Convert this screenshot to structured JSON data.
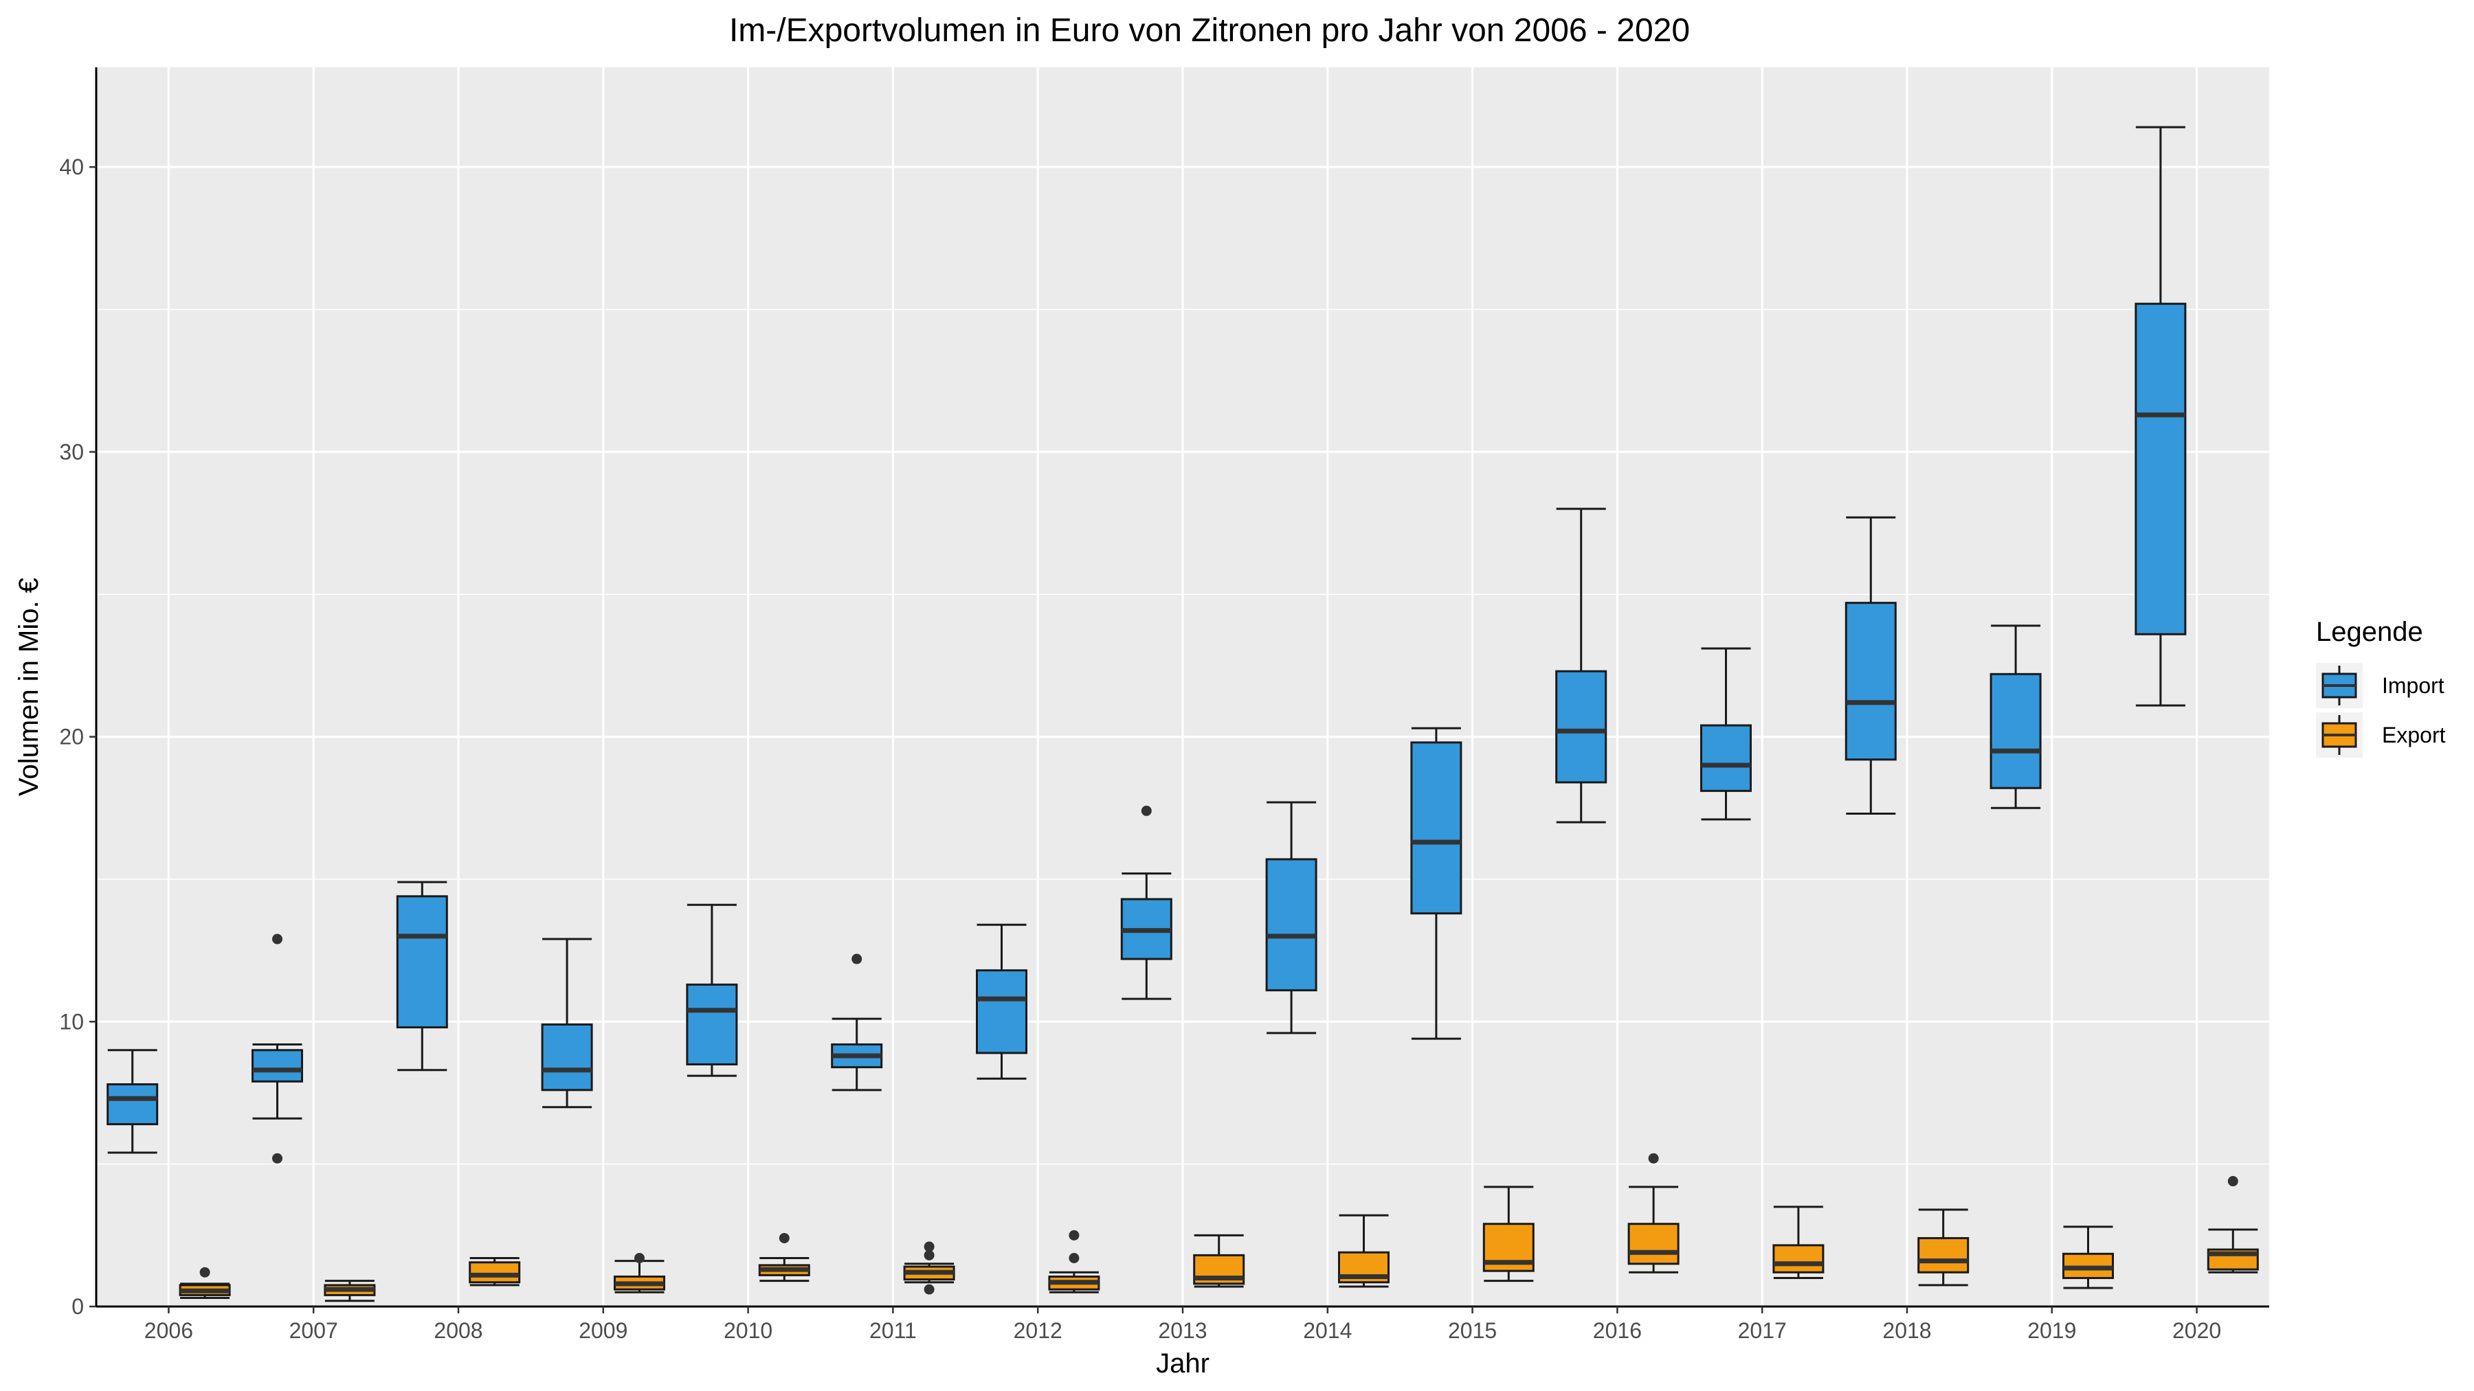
{
  "chart_data": {
    "type": "boxplot",
    "title": "Im-/Exportvolumen in Euro von Zitronen pro Jahr von 2006 - 2020",
    "xlabel": "Jahr",
    "ylabel": "Volumen in Mio. €",
    "ylim": [
      0,
      43.5
    ],
    "y_ticks": [
      "0",
      "10",
      "20",
      "30",
      "40"
    ],
    "categories": [
      "2006",
      "2007",
      "2008",
      "2009",
      "2010",
      "2011",
      "2012",
      "2013",
      "2014",
      "2015",
      "2016",
      "2017",
      "2018",
      "2019",
      "2020"
    ],
    "legend": {
      "title": "Legende",
      "position": "right"
    },
    "grid": true,
    "series": [
      {
        "name": "Import",
        "color": "#3498db",
        "boxes": [
          {
            "min": 5.4,
            "q1": 6.4,
            "median": 7.3,
            "q3": 7.8,
            "max": 9.0,
            "outliers": []
          },
          {
            "min": 6.6,
            "q1": 7.9,
            "median": 8.3,
            "q3": 9.0,
            "max": 9.2,
            "outliers": [
              12.9,
              5.2
            ]
          },
          {
            "min": 8.3,
            "q1": 9.8,
            "median": 13.0,
            "q3": 14.4,
            "max": 14.9,
            "outliers": []
          },
          {
            "min": 7.0,
            "q1": 7.6,
            "median": 8.3,
            "q3": 9.9,
            "max": 12.9,
            "outliers": []
          },
          {
            "min": 8.1,
            "q1": 8.5,
            "median": 10.4,
            "q3": 11.3,
            "max": 14.1,
            "outliers": []
          },
          {
            "min": 7.6,
            "q1": 8.4,
            "median": 8.8,
            "q3": 9.2,
            "max": 10.1,
            "outliers": [
              12.2
            ]
          },
          {
            "min": 8.0,
            "q1": 8.9,
            "median": 10.8,
            "q3": 11.8,
            "max": 13.4,
            "outliers": []
          },
          {
            "min": 10.8,
            "q1": 12.2,
            "median": 13.2,
            "q3": 14.3,
            "max": 15.2,
            "outliers": [
              17.4
            ]
          },
          {
            "min": 9.6,
            "q1": 11.1,
            "median": 13.0,
            "q3": 15.7,
            "max": 17.7,
            "outliers": []
          },
          {
            "min": 9.4,
            "q1": 13.8,
            "median": 16.3,
            "q3": 19.8,
            "max": 20.3,
            "outliers": []
          },
          {
            "min": 17.0,
            "q1": 18.4,
            "median": 20.2,
            "q3": 22.3,
            "max": 28.0,
            "outliers": []
          },
          {
            "min": 17.1,
            "q1": 18.1,
            "median": 19.0,
            "q3": 20.4,
            "max": 23.1,
            "outliers": []
          },
          {
            "min": 17.3,
            "q1": 19.2,
            "median": 21.2,
            "q3": 24.7,
            "max": 27.7,
            "outliers": []
          },
          {
            "min": 17.5,
            "q1": 18.2,
            "median": 19.5,
            "q3": 22.2,
            "max": 23.9,
            "outliers": []
          },
          {
            "min": 21.1,
            "q1": 23.6,
            "median": 31.3,
            "q3": 35.2,
            "max": 41.4,
            "outliers": []
          }
        ]
      },
      {
        "name": "Export",
        "color": "#f39c12",
        "boxes": [
          {
            "min": 0.3,
            "q1": 0.4,
            "median": 0.55,
            "q3": 0.75,
            "max": 0.8,
            "outliers": [
              1.2
            ]
          },
          {
            "min": 0.2,
            "q1": 0.4,
            "median": 0.6,
            "q3": 0.75,
            "max": 0.9,
            "outliers": []
          },
          {
            "min": 0.75,
            "q1": 0.85,
            "median": 1.1,
            "q3": 1.55,
            "max": 1.7,
            "outliers": []
          },
          {
            "min": 0.5,
            "q1": 0.6,
            "median": 0.8,
            "q3": 1.05,
            "max": 1.6,
            "outliers": [
              1.7
            ]
          },
          {
            "min": 0.9,
            "q1": 1.1,
            "median": 1.3,
            "q3": 1.45,
            "max": 1.7,
            "outliers": [
              2.4
            ]
          },
          {
            "min": 0.85,
            "q1": 0.95,
            "median": 1.2,
            "q3": 1.4,
            "max": 1.5,
            "outliers": [
              2.1,
              1.8,
              0.6
            ]
          },
          {
            "min": 0.5,
            "q1": 0.6,
            "median": 0.85,
            "q3": 1.05,
            "max": 1.2,
            "outliers": [
              2.5,
              1.7
            ]
          },
          {
            "min": 0.7,
            "q1": 0.8,
            "median": 1.0,
            "q3": 1.8,
            "max": 2.5,
            "outliers": []
          },
          {
            "min": 0.7,
            "q1": 0.85,
            "median": 1.05,
            "q3": 1.9,
            "max": 3.2,
            "outliers": []
          },
          {
            "min": 0.9,
            "q1": 1.25,
            "median": 1.55,
            "q3": 2.9,
            "max": 4.2,
            "outliers": []
          },
          {
            "min": 1.2,
            "q1": 1.5,
            "median": 1.9,
            "q3": 2.9,
            "max": 4.2,
            "outliers": [
              5.2
            ]
          },
          {
            "min": 1.0,
            "q1": 1.2,
            "median": 1.5,
            "q3": 2.15,
            "max": 3.5,
            "outliers": []
          },
          {
            "min": 0.75,
            "q1": 1.2,
            "median": 1.6,
            "q3": 2.4,
            "max": 3.4,
            "outliers": []
          },
          {
            "min": 0.65,
            "q1": 1.0,
            "median": 1.35,
            "q3": 1.85,
            "max": 2.8,
            "outliers": []
          },
          {
            "min": 1.2,
            "q1": 1.3,
            "median": 1.85,
            "q3": 2.0,
            "max": 2.7,
            "outliers": [
              4.4
            ]
          }
        ]
      }
    ]
  }
}
